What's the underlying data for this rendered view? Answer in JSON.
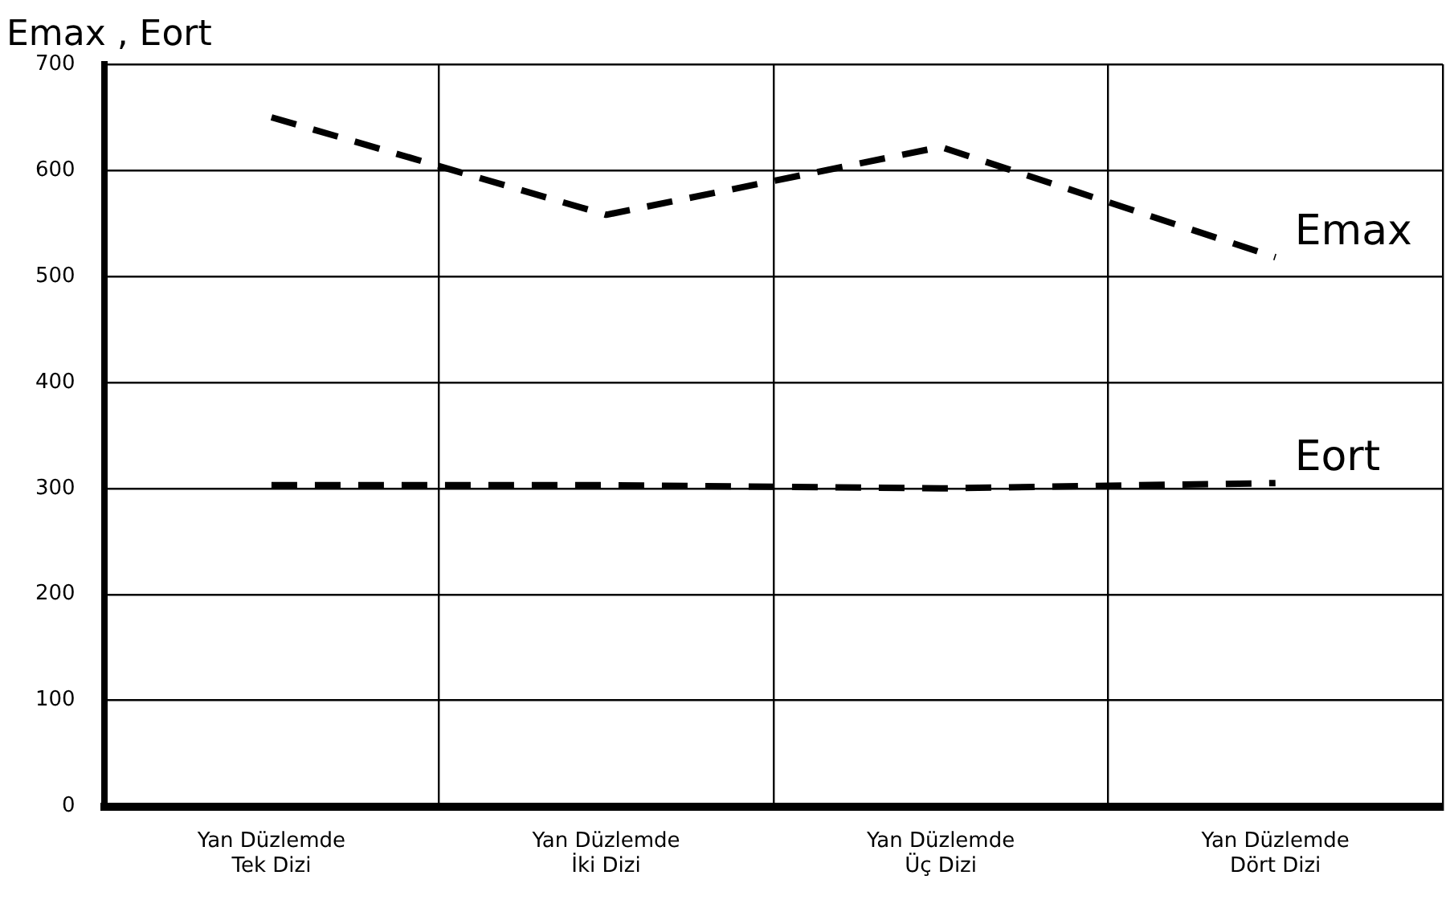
{
  "chart_data": {
    "type": "line",
    "ylabel": "Emax , Eort",
    "categories": [
      "Yan Düzlemde\nTek Dizi",
      "Yan Düzlemde\nİki Dizi",
      "Yan Düzlemde\nÜç Dizi",
      "Yan Düzlemde\nDört Dizi"
    ],
    "series": [
      {
        "name": "Emax",
        "color": "#000000",
        "values": [
          650,
          558,
          622,
          518
        ]
      },
      {
        "name": "Eort",
        "color": "#000000",
        "values": [
          303,
          303,
          300,
          305
        ]
      }
    ],
    "ylim": [
      0,
      700
    ],
    "yticks": [
      0,
      100,
      200,
      300,
      400,
      500,
      600,
      700
    ],
    "grid": true,
    "legend": false,
    "marker": "none",
    "line_style": "dashed"
  }
}
